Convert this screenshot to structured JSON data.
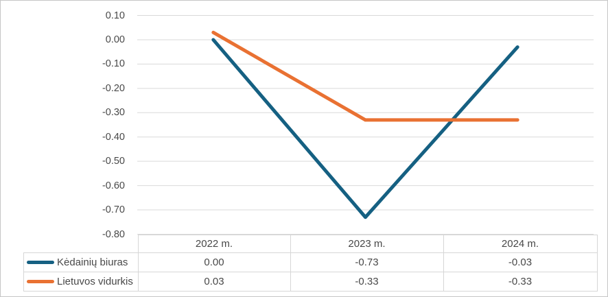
{
  "chart_data": {
    "type": "line",
    "title": "",
    "xlabel": "",
    "ylabel": "",
    "categories": [
      "2022 m.",
      "2023 m.",
      "2024 m."
    ],
    "series": [
      {
        "name": "Kėdainių biuras",
        "color": "#156082",
        "values": [
          0.0,
          -0.73,
          -0.03
        ],
        "labels": [
          "0.00",
          "-0.73",
          "-0.03"
        ]
      },
      {
        "name": "Lietuvos vidurkis",
        "color": "#E97132",
        "values": [
          0.03,
          -0.33,
          -0.33
        ],
        "labels": [
          "0.03",
          "-0.33",
          "-0.33"
        ]
      }
    ],
    "yticks": [
      0.1,
      0.0,
      -0.1,
      -0.2,
      -0.3,
      -0.4,
      -0.5,
      -0.6,
      -0.7,
      -0.8
    ],
    "ytick_labels": [
      "0.10",
      "0.00",
      "-0.10",
      "-0.20",
      "-0.30",
      "-0.40",
      "-0.50",
      "-0.60",
      "-0.70",
      "-0.80"
    ],
    "ylim": [
      -0.8,
      0.1
    ],
    "grid": true,
    "legend_position": "table-left"
  },
  "colors": {
    "gridline": "#d9d9d9",
    "table_border": "#d6d6d6",
    "text": "#484848",
    "background": "#ffffff"
  }
}
